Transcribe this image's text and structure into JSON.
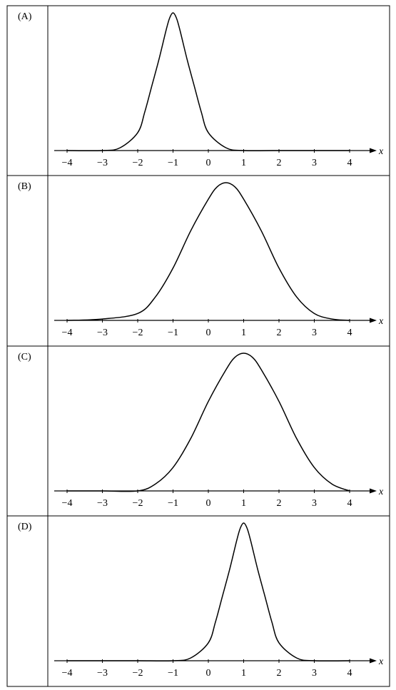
{
  "chart_data": [
    {
      "type": "line",
      "option": "(A)",
      "xlabel": "x",
      "ylabel": "",
      "xlim": [
        -4,
        4
      ],
      "xticks": [
        "−4",
        "−3",
        "−2",
        "−1",
        "0",
        "1",
        "2",
        "3",
        "4"
      ],
      "grid": false,
      "series": [
        {
          "x": [
            -4,
            -3,
            -2.5,
            -2,
            -1.8,
            -1.6,
            -1.4,
            -1.2,
            -1.1,
            -1,
            -0.9,
            -0.8,
            -0.6,
            -0.4,
            -0.2,
            0,
            0.5,
            1,
            2,
            3,
            4
          ],
          "values": [
            0,
            0,
            0.02,
            0.13,
            0.28,
            0.47,
            0.66,
            0.87,
            0.96,
            1.0,
            0.96,
            0.87,
            0.66,
            0.47,
            0.28,
            0.13,
            0.02,
            0,
            0,
            0,
            0
          ]
        }
      ]
    },
    {
      "type": "line",
      "option": "(B)",
      "xlabel": "x",
      "ylabel": "",
      "xlim": [
        -4,
        4
      ],
      "xticks": [
        "−4",
        "−3",
        "−2",
        "−1",
        "0",
        "1",
        "2",
        "3",
        "4"
      ],
      "grid": false,
      "series": [
        {
          "x": [
            -4,
            -3,
            -2,
            -1.5,
            -1,
            -0.5,
            0,
            0.25,
            0.5,
            0.75,
            1,
            1.5,
            2,
            2.5,
            3,
            3.5,
            4
          ],
          "values": [
            0,
            0.01,
            0.05,
            0.17,
            0.38,
            0.65,
            0.88,
            0.97,
            1.0,
            0.97,
            0.88,
            0.65,
            0.38,
            0.17,
            0.05,
            0.01,
            0
          ]
        }
      ]
    },
    {
      "type": "line",
      "option": "(C)",
      "xlabel": "x",
      "ylabel": "",
      "xlim": [
        -4,
        4
      ],
      "xticks": [
        "−4",
        "−3",
        "−2",
        "−1",
        "0",
        "1",
        "2",
        "3",
        "4"
      ],
      "grid": false,
      "series": [
        {
          "x": [
            -4,
            -3,
            -2,
            -1.5,
            -1,
            -0.5,
            0,
            0.5,
            0.75,
            1,
            1.25,
            1.5,
            2,
            2.5,
            3,
            3.5,
            4
          ],
          "values": [
            0,
            0,
            0,
            0.05,
            0.17,
            0.38,
            0.65,
            0.88,
            0.97,
            1.0,
            0.97,
            0.88,
            0.65,
            0.38,
            0.17,
            0.05,
            0
          ]
        }
      ]
    },
    {
      "type": "line",
      "option": "(D)",
      "xlabel": "x",
      "ylabel": "",
      "xlim": [
        -4,
        4
      ],
      "xticks": [
        "−4",
        "−3",
        "−2",
        "−1",
        "0",
        "1",
        "2",
        "3",
        "4"
      ],
      "grid": false,
      "series": [
        {
          "x": [
            -4,
            -3,
            -2,
            -1,
            -0.5,
            0,
            0.2,
            0.4,
            0.6,
            0.8,
            0.9,
            1,
            1.1,
            1.2,
            1.4,
            1.6,
            1.8,
            2,
            2.5,
            3,
            4
          ],
          "values": [
            0,
            0,
            0,
            0,
            0.02,
            0.13,
            0.28,
            0.47,
            0.66,
            0.87,
            0.96,
            1.0,
            0.96,
            0.87,
            0.66,
            0.47,
            0.28,
            0.13,
            0.02,
            0,
            0
          ]
        }
      ]
    }
  ]
}
